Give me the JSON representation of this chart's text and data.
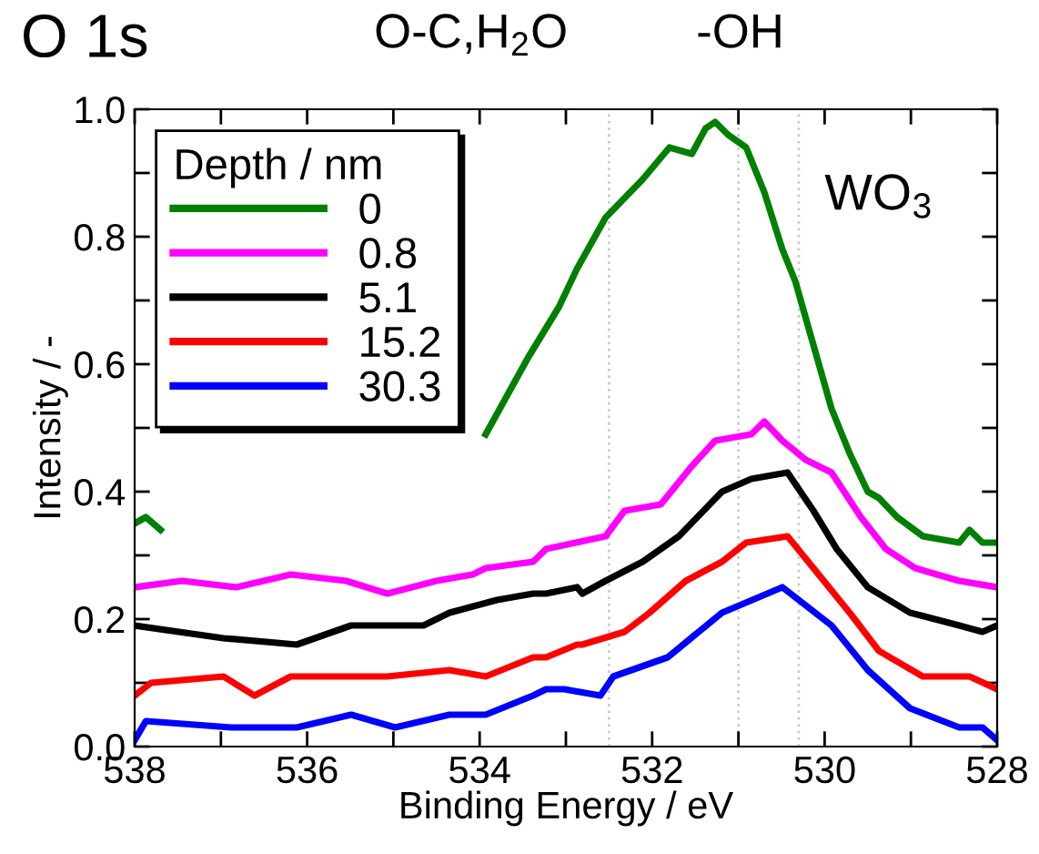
{
  "chart_data": {
    "type": "line",
    "title": "O 1s",
    "xlabel": "Binding Energy / eV",
    "ylabel": "Intensity / -",
    "legend_title": "Depth / nm",
    "annotations": [
      "O-C,H$_{2}$O",
      "-OH",
      "WO$_{3}$"
    ],
    "xlim": [
      538,
      528
    ],
    "ylim": [
      0.0,
      1.0
    ],
    "xticks": [
      538,
      {
        "value": 537,
        "label": null
      },
      536,
      {
        "value": 535,
        "label": null
      },
      534,
      {
        "value": 533,
        "label": null
      },
      532,
      {
        "value": 531,
        "label": null
      },
      530,
      {
        "value": 529,
        "label": null
      },
      528
    ],
    "yticks": [
      {
        "value": 0,
        "label": "0.0"
      },
      {
        "value": 0.1,
        "label": null
      },
      0.2,
      {
        "value": 0.3,
        "label": null
      },
      0.4,
      {
        "value": 0.5,
        "label": null
      },
      0.6,
      {
        "value": 0.7,
        "label": null
      },
      0.8,
      {
        "value": 0.9,
        "label": null
      },
      {
        "value": 1,
        "label": "1.0"
      }
    ],
    "ref_lines": [
      {
        "axis": "x",
        "value": 532.5,
        "color": "#cccccc",
        "line_style": "dotted"
      },
      {
        "axis": "x",
        "value": 531.0,
        "color": "#cccccc",
        "line_style": "dotted"
      },
      {
        "axis": "x",
        "value": 530.3,
        "color": "#cccccc",
        "line_style": "dotted"
      }
    ],
    "grid": false,
    "legend": "top left",
    "marker": "none",
    "line_style": "solid",
    "series": [
      {
        "name": "0",
        "color": "#008000",
        "x": [
          538.0,
          537.87,
          537.7,
          537.5,
          533.93,
          533.44,
          533.08,
          532.87,
          532.54,
          532.11,
          531.8,
          531.54,
          531.38,
          531.27,
          531.12,
          530.91,
          530.7,
          530.49,
          530.34,
          530.13,
          529.92,
          529.71,
          529.5,
          529.37,
          529.16,
          528.86,
          528.44,
          528.32,
          528.17,
          528.0
        ],
        "values": [
          0.35,
          0.36,
          0.34,
          null,
          0.49,
          0.61,
          0.69,
          0.75,
          0.83,
          0.89,
          0.94,
          0.93,
          0.97,
          0.98,
          0.96,
          0.94,
          0.87,
          0.78,
          0.73,
          0.63,
          0.53,
          0.46,
          0.4,
          0.39,
          0.36,
          0.33,
          0.32,
          0.34,
          0.32,
          0.32
        ]
      },
      {
        "name": "0.8",
        "color": "#ff00ff",
        "x": [
          538.0,
          537.45,
          536.82,
          536.19,
          535.55,
          535.07,
          534.5,
          534.08,
          533.93,
          533.38,
          533.23,
          532.54,
          532.32,
          531.9,
          531.54,
          531.27,
          530.85,
          530.7,
          530.49,
          530.22,
          529.92,
          529.58,
          529.29,
          528.95,
          528.44,
          528.0
        ],
        "values": [
          0.25,
          0.26,
          0.25,
          0.27,
          0.26,
          0.24,
          0.26,
          0.27,
          0.28,
          0.29,
          0.31,
          0.33,
          0.37,
          0.38,
          0.44,
          0.48,
          0.49,
          0.51,
          0.48,
          0.45,
          0.43,
          0.36,
          0.31,
          0.28,
          0.26,
          0.25
        ]
      },
      {
        "name": "5.1",
        "color": "#000000",
        "x": [
          538.0,
          536.97,
          536.12,
          535.49,
          534.65,
          534.35,
          533.8,
          533.38,
          533.23,
          532.87,
          532.81,
          532.54,
          532.11,
          531.69,
          531.19,
          530.85,
          530.43,
          530.13,
          529.86,
          529.5,
          529.01,
          528.44,
          528.17,
          528.0
        ],
        "values": [
          0.19,
          0.17,
          0.16,
          0.19,
          0.19,
          0.21,
          0.23,
          0.24,
          0.24,
          0.25,
          0.24,
          0.26,
          0.29,
          0.33,
          0.4,
          0.42,
          0.43,
          0.37,
          0.31,
          0.25,
          0.21,
          0.19,
          0.18,
          0.19
        ]
      },
      {
        "name": "15.2",
        "color": "#ff0000",
        "x": [
          538.0,
          537.81,
          536.97,
          536.61,
          536.19,
          535.07,
          534.35,
          533.93,
          533.38,
          533.23,
          532.87,
          532.81,
          532.32,
          532.03,
          531.61,
          531.19,
          530.91,
          530.43,
          530.13,
          529.71,
          529.37,
          528.86,
          528.32,
          528.0
        ],
        "values": [
          0.08,
          0.1,
          0.11,
          0.08,
          0.11,
          0.11,
          0.12,
          0.11,
          0.14,
          0.14,
          0.16,
          0.16,
          0.18,
          0.21,
          0.26,
          0.29,
          0.32,
          0.33,
          0.28,
          0.21,
          0.15,
          0.11,
          0.11,
          0.09
        ]
      },
      {
        "name": "30.3",
        "color": "#0000ff",
        "x": [
          538.0,
          537.87,
          536.88,
          536.12,
          535.49,
          534.98,
          534.35,
          533.93,
          533.38,
          533.23,
          533.02,
          532.6,
          532.45,
          531.82,
          531.19,
          530.49,
          529.92,
          529.5,
          529.01,
          528.44,
          528.17,
          528.0
        ],
        "values": [
          0.01,
          0.04,
          0.03,
          0.03,
          0.05,
          0.03,
          0.05,
          0.05,
          0.08,
          0.09,
          0.09,
          0.08,
          0.11,
          0.14,
          0.21,
          0.25,
          0.19,
          0.12,
          0.06,
          0.03,
          0.03,
          0.01
        ]
      }
    ]
  }
}
